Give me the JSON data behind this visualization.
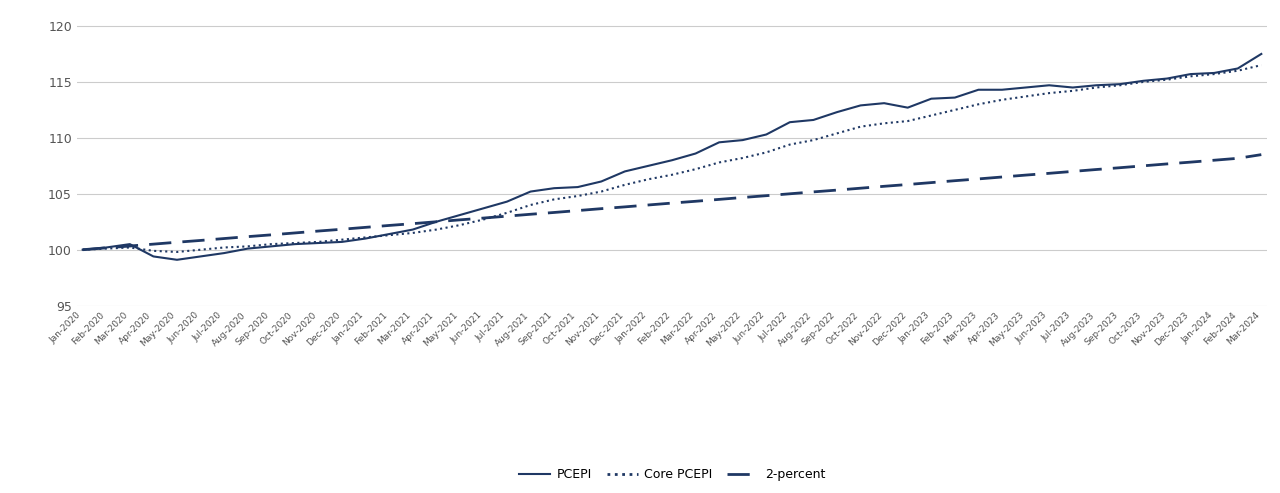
{
  "legend_labels": [
    "PCEPI",
    "Core PCEPI",
    "2-percent"
  ],
  "line_color": "#1F3864",
  "background_color": "#FFFFFF",
  "ylim": [
    95,
    121
  ],
  "yticks": [
    95,
    100,
    105,
    110,
    115,
    120
  ],
  "pcepi": [
    100.0,
    100.2,
    100.5,
    99.4,
    99.1,
    99.4,
    99.7,
    100.1,
    100.3,
    100.5,
    100.6,
    100.7,
    101.0,
    101.4,
    101.8,
    102.5,
    103.1,
    103.7,
    104.3,
    105.2,
    105.5,
    105.6,
    106.1,
    107.0,
    107.5,
    108.0,
    108.6,
    109.6,
    109.8,
    110.3,
    111.4,
    111.6,
    112.3,
    112.9,
    113.1,
    112.7,
    113.5,
    113.6,
    114.3,
    114.3,
    114.5,
    114.7,
    114.5,
    114.7,
    114.8,
    115.1,
    115.3,
    115.7,
    115.8,
    116.2,
    117.5
  ],
  "core_pcepi": [
    100.0,
    100.1,
    100.2,
    99.9,
    99.8,
    100.0,
    100.2,
    100.3,
    100.5,
    100.6,
    100.7,
    100.9,
    101.1,
    101.3,
    101.5,
    101.8,
    102.2,
    102.7,
    103.3,
    104.0,
    104.5,
    104.8,
    105.2,
    105.8,
    106.3,
    106.7,
    107.2,
    107.8,
    108.2,
    108.7,
    109.4,
    109.8,
    110.4,
    111.0,
    111.3,
    111.5,
    112.0,
    112.5,
    113.0,
    113.4,
    113.7,
    114.0,
    114.2,
    114.5,
    114.7,
    115.0,
    115.2,
    115.5,
    115.7,
    116.0,
    116.5
  ],
  "two_percent": [
    100.0,
    100.17,
    100.33,
    100.5,
    100.67,
    100.83,
    101.0,
    101.17,
    101.33,
    101.5,
    101.67,
    101.83,
    102.0,
    102.17,
    102.33,
    102.5,
    102.67,
    102.83,
    103.0,
    103.17,
    103.33,
    103.5,
    103.67,
    103.83,
    104.0,
    104.17,
    104.33,
    104.5,
    104.67,
    104.83,
    105.0,
    105.17,
    105.33,
    105.5,
    105.67,
    105.83,
    106.0,
    106.17,
    106.33,
    106.5,
    106.67,
    106.83,
    107.0,
    107.17,
    107.33,
    107.5,
    107.67,
    107.83,
    108.0,
    108.17,
    108.5
  ],
  "x_labels": [
    "Jan-2020",
    "Feb-2020",
    "Mar-2020",
    "Apr-2020",
    "May-2020",
    "Jun-2020",
    "Jul-2020",
    "Aug-2020",
    "Sep-2020",
    "Oct-2020",
    "Nov-2020",
    "Dec-2020",
    "Jan-2021",
    "Feb-2021",
    "Mar-2021",
    "Apr-2021",
    "May-2021",
    "Jun-2021",
    "Jul-2021",
    "Aug-2021",
    "Sep-2021",
    "Oct-2021",
    "Nov-2021",
    "Dec-2021",
    "Jan-2022",
    "Feb-2022",
    "Mar-2022",
    "Apr-2022",
    "May-2022",
    "Jun-2022",
    "Jul-2022",
    "Aug-2022",
    "Sep-2022",
    "Oct-2022",
    "Nov-2022",
    "Dec-2022",
    "Jan-2023",
    "Feb-2023",
    "Mar-2023",
    "Apr-2023",
    "May-2023",
    "Jun-2023",
    "Jul-2023",
    "Aug-2023",
    "Sep-2023",
    "Oct-2023",
    "Nov-2023",
    "Dec-2023",
    "Jan-2024",
    "Feb-2024",
    "Mar-2024"
  ]
}
